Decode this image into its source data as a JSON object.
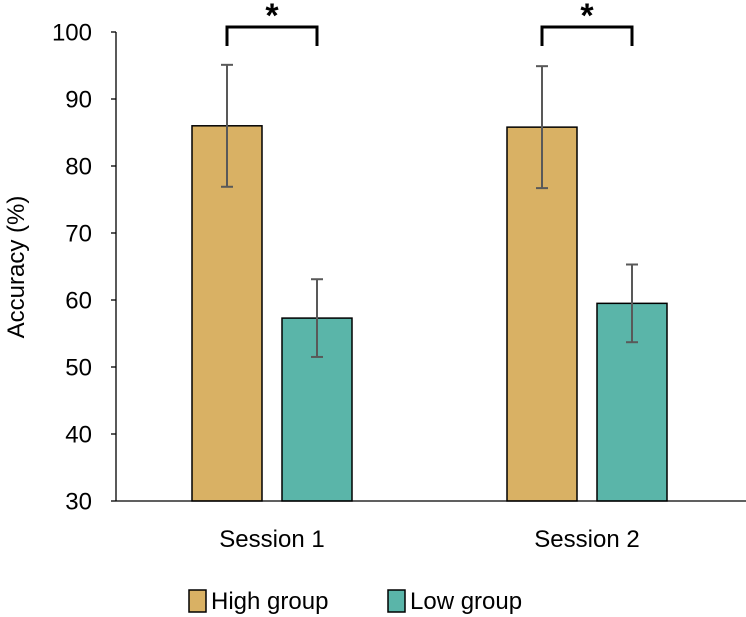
{
  "chart_data": {
    "type": "bar",
    "title": "",
    "xlabel": "",
    "ylabel": "Accuracy (%)",
    "categories": [
      "Session 1",
      "Session 2"
    ],
    "ylim": [
      30,
      100
    ],
    "yticks": [
      30,
      40,
      50,
      60,
      70,
      80,
      90,
      100
    ],
    "grid": false,
    "legend_position": "bottom",
    "series": [
      {
        "name": "High group",
        "values": [
          86.0,
          85.8
        ],
        "errors": [
          9.1,
          9.1
        ],
        "color": "#D9B164"
      },
      {
        "name": "Low group",
        "values": [
          57.3,
          59.5
        ],
        "errors": [
          5.8,
          5.8
        ],
        "color": "#5AB5A9"
      }
    ],
    "annotations": [
      {
        "category": "Session 1",
        "label": "*"
      },
      {
        "category": "Session 2",
        "label": "*"
      }
    ]
  }
}
